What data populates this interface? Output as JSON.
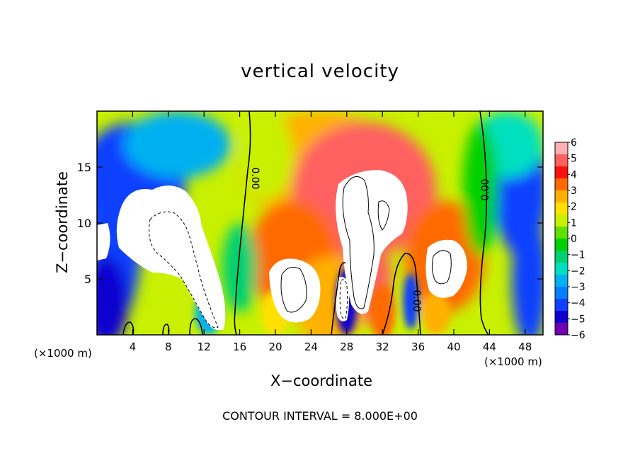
{
  "chart_data": {
    "type": "heatmap",
    "title": "vertical velocity",
    "xlabel": "X−coordinate",
    "ylabel": "Z−coordinate",
    "x_unit_left": "(×1000 m)",
    "x_unit_right": "(×1000 m)",
    "x_ticks": [
      4,
      8,
      12,
      16,
      20,
      24,
      28,
      32,
      36,
      40,
      44,
      48
    ],
    "y_ticks": [
      5,
      10,
      15
    ],
    "xlim": [
      0,
      50
    ],
    "ylim": [
      0,
      20
    ],
    "contour_interval_text": "CONTOUR INTERVAL =  8.000E+00",
    "contour_labels": [
      "0.00",
      "0.00",
      "0.00"
    ],
    "colorbar": {
      "ticks": [
        "6",
        "5",
        "4",
        "3",
        "2",
        "1",
        "0",
        "−1",
        "−2",
        "−3",
        "−4",
        "−5",
        "−6"
      ],
      "range": [
        -6,
        6
      ],
      "colors": [
        "#ffb0b0",
        "#ff6060",
        "#ff1010",
        "#ff6a00",
        "#ffb000",
        "#ffe000",
        "#c8f000",
        "#60e000",
        "#00d000",
        "#00d070",
        "#00e0c0",
        "#00b0f0",
        "#0080ff",
        "#1040ff",
        "#1000d0",
        "#7000b0"
      ]
    },
    "features": [
      {
        "kind": "updraft",
        "x": 9.5,
        "z": 9,
        "value": 8
      },
      {
        "kind": "updraft",
        "x": 30,
        "z": 12,
        "value": 14
      },
      {
        "kind": "updraft",
        "x": 22,
        "z": 5,
        "value": 9
      },
      {
        "kind": "updraft",
        "x": 39,
        "z": 6,
        "value": 9
      },
      {
        "kind": "downdraft",
        "x": 28,
        "z": 3,
        "value": -9
      },
      {
        "kind": "downdraft",
        "x": 4,
        "z": 14,
        "value": -5
      },
      {
        "kind": "downdraft",
        "x": 48,
        "z": 12,
        "value": -5
      }
    ]
  }
}
